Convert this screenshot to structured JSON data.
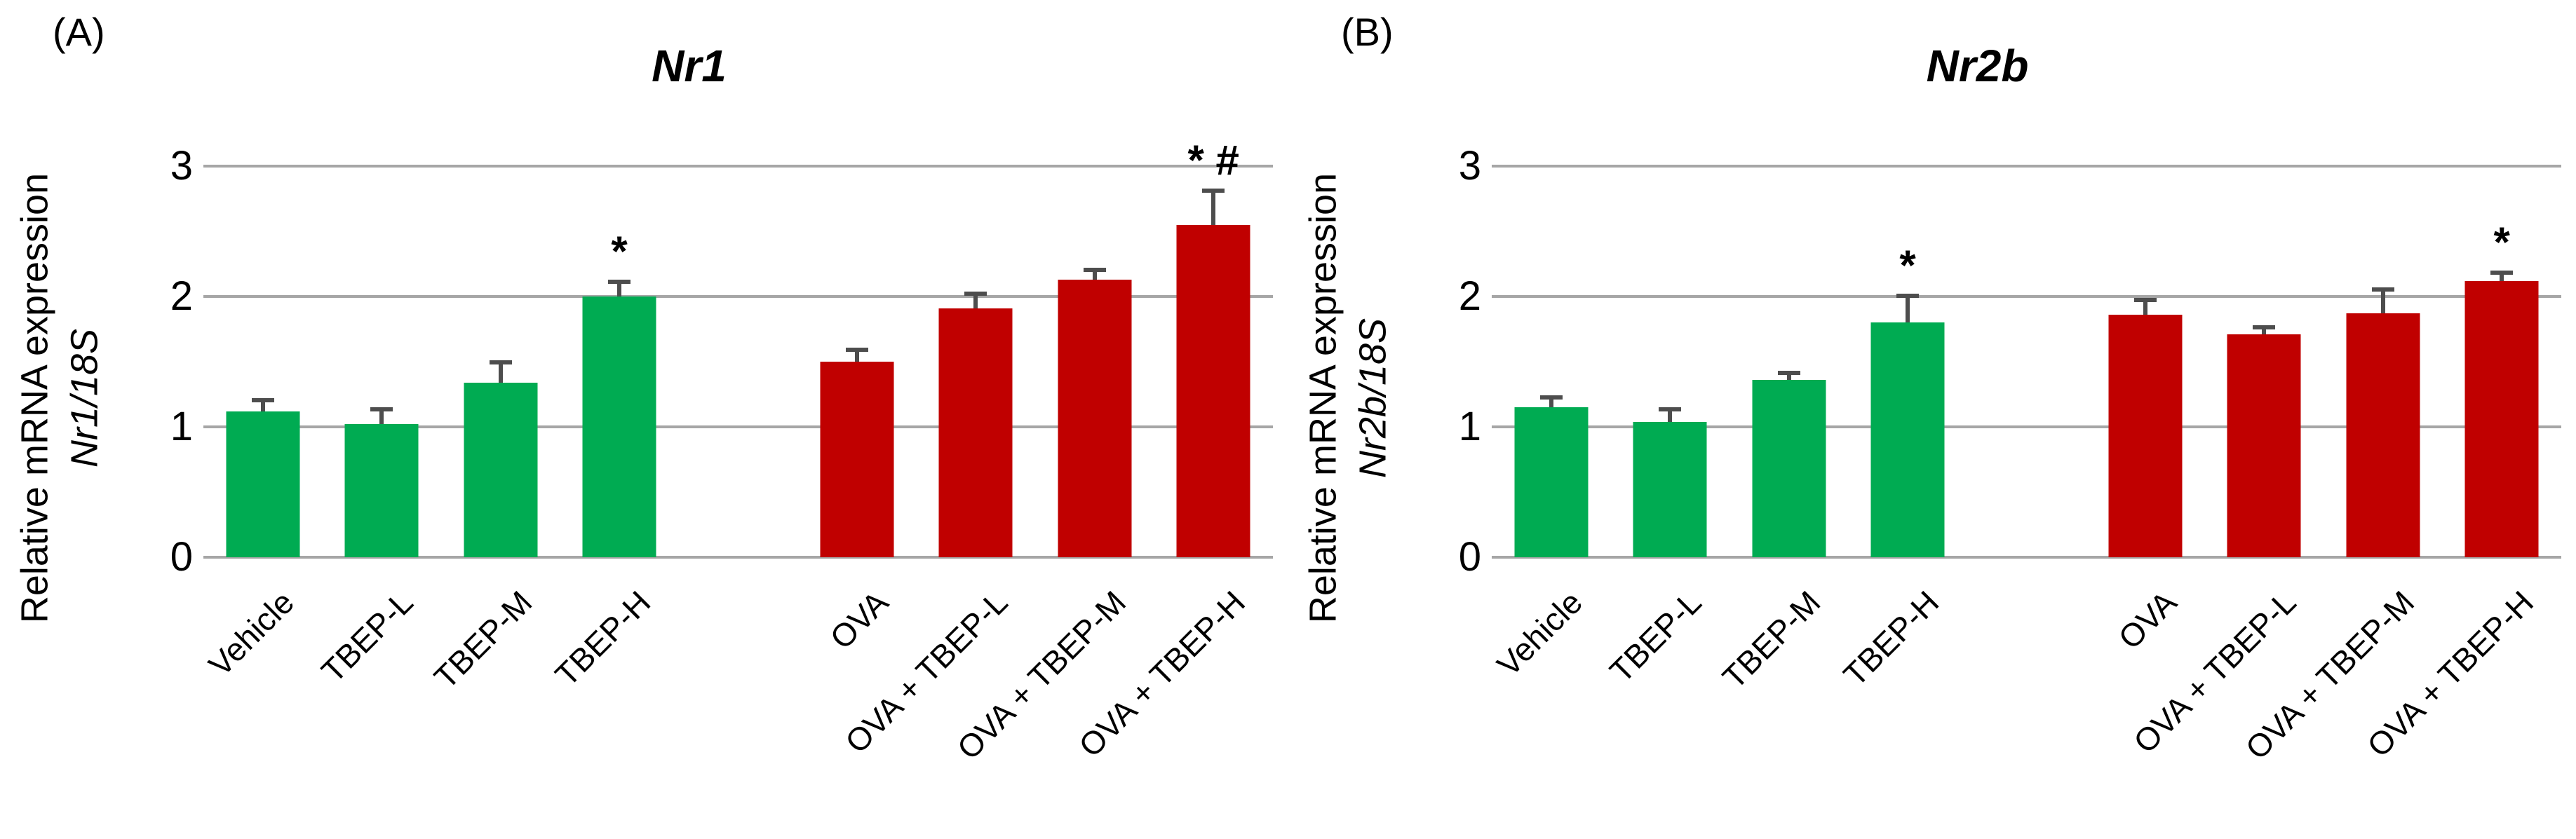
{
  "style": {
    "green": "#00AB52",
    "red": "#C00000",
    "gridline": "#A6A6A6",
    "error_bar": "#4D4D4D",
    "text": "#000000",
    "background": "#FFFFFF"
  },
  "panels": [
    {
      "panel_label": "(A)",
      "title": "Nr1",
      "y_axis_label_line1": "Relative mRNA expression",
      "y_axis_label_line2": "Nr1/18S",
      "y_ticks": [
        "3",
        "2",
        "1",
        "0"
      ]
    },
    {
      "panel_label": "(B)",
      "title": "Nr2b",
      "y_axis_label_line1": "Relative mRNA expression",
      "y_axis_label_line2": "Nr2b/18S",
      "y_ticks": [
        "3",
        "2",
        "1",
        "0"
      ]
    }
  ],
  "chart_data": [
    {
      "type": "bar",
      "panel": "A",
      "title": "Nr1",
      "ylabel": "Relative mRNA expression Nr1/18S",
      "ylim": [
        0,
        3
      ],
      "yticks": [
        0,
        1,
        2,
        3
      ],
      "grid": true,
      "legend": false,
      "categories": [
        "Vehicle",
        "TBEP-L",
        "TBEP-M",
        "TBEP-H",
        "OVA",
        "OVA + TBEP-L",
        "OVA + TBEP-M",
        "OVA + TBEP-H"
      ],
      "values": [
        1.12,
        1.02,
        1.34,
        2.0,
        1.5,
        1.91,
        2.13,
        2.55
      ],
      "errors": [
        0.1,
        0.13,
        0.17,
        0.13,
        0.11,
        0.13,
        0.09,
        0.28
      ],
      "significance": [
        "",
        "",
        "",
        "*",
        "",
        "",
        "",
        "* #"
      ],
      "bar_color_keys": [
        "green",
        "green",
        "green",
        "green",
        "red",
        "red",
        "red",
        "red"
      ],
      "group_gap_after_index": 3
    },
    {
      "type": "bar",
      "panel": "B",
      "title": "Nr2b",
      "ylabel": "Relative mRNA expression Nr2b/18S",
      "ylim": [
        0,
        3
      ],
      "yticks": [
        0,
        1,
        2,
        3
      ],
      "grid": true,
      "legend": false,
      "categories": [
        "Vehicle",
        "TBEP-L",
        "TBEP-M",
        "TBEP-H",
        "OVA",
        "OVA + TBEP-L",
        "OVA + TBEP-M",
        "OVA + TBEP-H"
      ],
      "values": [
        1.15,
        1.04,
        1.36,
        1.8,
        1.86,
        1.71,
        1.87,
        2.12
      ],
      "errors": [
        0.09,
        0.11,
        0.07,
        0.22,
        0.13,
        0.07,
        0.2,
        0.08
      ],
      "significance": [
        "",
        "",
        "",
        "*",
        "",
        "",
        "",
        "*"
      ],
      "bar_color_keys": [
        "green",
        "green",
        "green",
        "green",
        "red",
        "red",
        "red",
        "red"
      ],
      "group_gap_after_index": 3
    }
  ]
}
